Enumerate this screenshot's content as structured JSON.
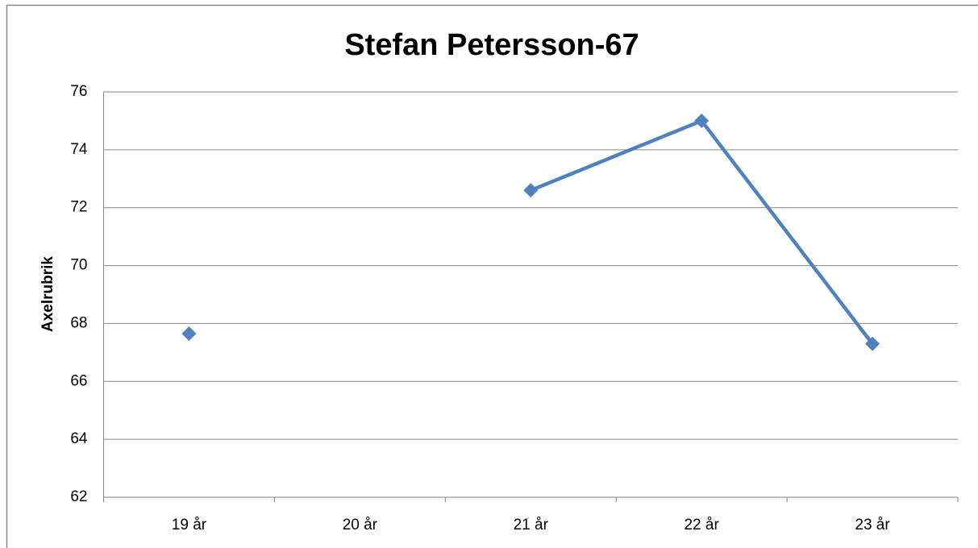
{
  "chart_data": {
    "type": "line",
    "title": "Stefan Petersson-67",
    "y_label": "Axelrubrik",
    "categories": [
      "19 år",
      "20 år",
      "21 år",
      "22 år",
      "23 år"
    ],
    "values": [
      67.65,
      null,
      72.6,
      75.0,
      67.3
    ],
    "color": "#4f81bd",
    "ylim": [
      62,
      76
    ],
    "yticks": [
      62,
      64,
      66,
      68,
      70,
      72,
      74,
      76
    ],
    "grid": true
  }
}
